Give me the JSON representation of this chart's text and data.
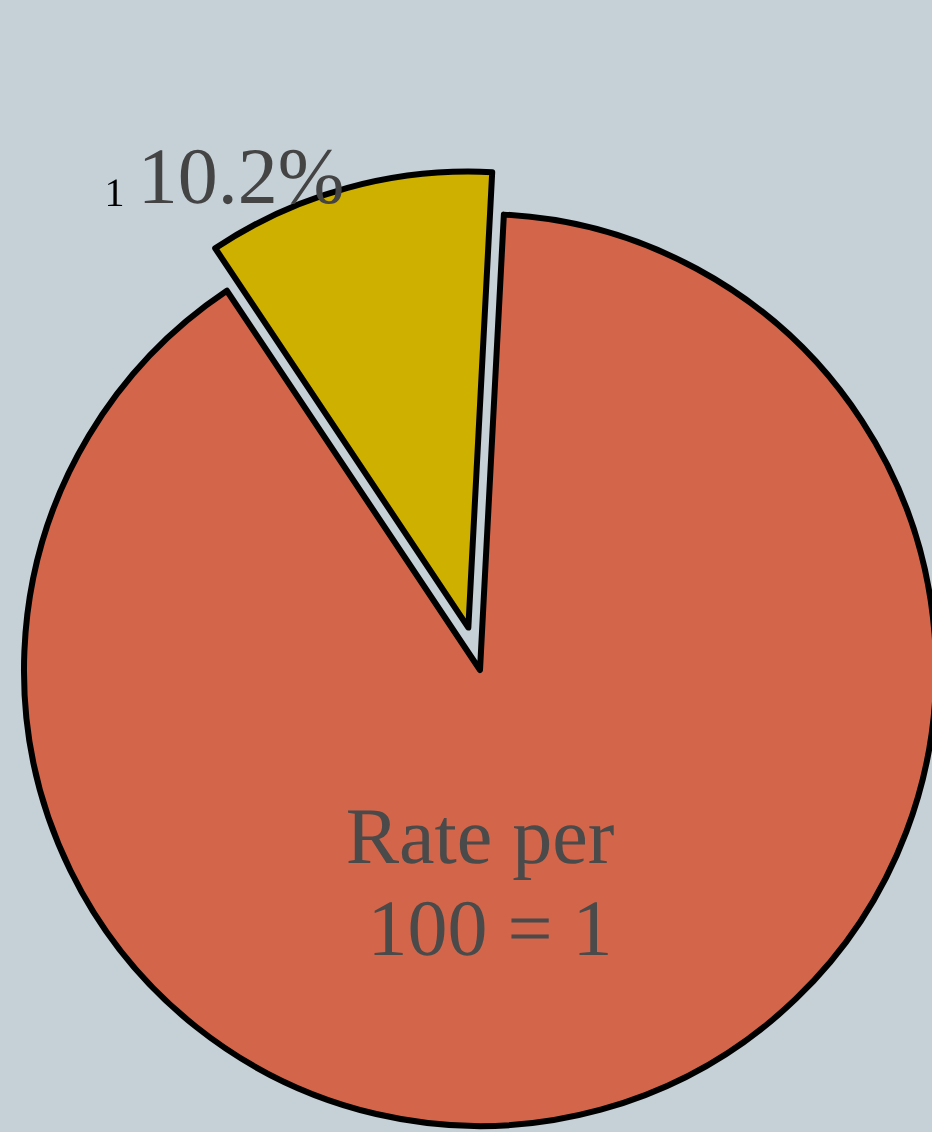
{
  "chart_data": {
    "type": "pie",
    "categories": [
      "1",
      null
    ],
    "values": [
      10.2,
      89.8
    ],
    "colors": [
      "#cdb000",
      "#d2654a"
    ],
    "value_labels": [
      "10.2%",
      null
    ],
    "annotations": [
      "Rate per 100 = 1"
    ],
    "legend": false
  }
}
